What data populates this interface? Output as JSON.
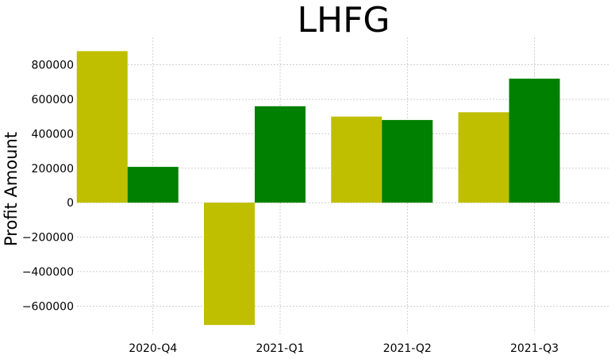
{
  "chart_data": {
    "type": "bar",
    "title": "LHFG",
    "xlabel": "",
    "ylabel": "Profit Amount",
    "categories": [
      "2020-Q4",
      "2021-Q1",
      "2021-Q2",
      "2021-Q3"
    ],
    "series": [
      {
        "values": [
          880000,
          -710000,
          500000,
          525000
        ],
        "color": "#bfbf00"
      },
      {
        "values": [
          208000,
          560000,
          480000,
          720000
        ],
        "color": "#008000"
      }
    ],
    "yticks": [
      -600000,
      -400000,
      -200000,
      0,
      200000,
      400000,
      600000,
      800000
    ],
    "ytick_labels": [
      "−600000",
      "−400000",
      "−200000",
      "0",
      "200000",
      "400000",
      "600000",
      "800000"
    ],
    "ylim": [
      -760000,
      960000
    ],
    "grid": true,
    "legend": "none"
  }
}
